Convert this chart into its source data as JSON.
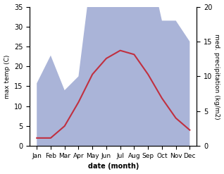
{
  "months": [
    "Jan",
    "Feb",
    "Mar",
    "Apr",
    "May",
    "Jun",
    "Jul",
    "Aug",
    "Sep",
    "Oct",
    "Nov",
    "Dec"
  ],
  "temperature": [
    2,
    2,
    5,
    11,
    18,
    22,
    24,
    23,
    18,
    12,
    7,
    4
  ],
  "precipitation": [
    9,
    13,
    8,
    10,
    26,
    33,
    30,
    28,
    27,
    18,
    18,
    15
  ],
  "temp_color": "#c03040",
  "precip_fill_color": "#aab4d8",
  "left_ylim": [
    0,
    35
  ],
  "right_ylim": [
    0,
    20
  ],
  "left_yticks": [
    0,
    5,
    10,
    15,
    20,
    25,
    30,
    35
  ],
  "right_yticks": [
    0,
    5,
    10,
    15,
    20
  ],
  "xlabel": "date (month)",
  "ylabel_left": "max temp (C)",
  "ylabel_right": "med. precipitation (kg/m2)",
  "fig_width": 3.18,
  "fig_height": 2.47,
  "dpi": 100
}
